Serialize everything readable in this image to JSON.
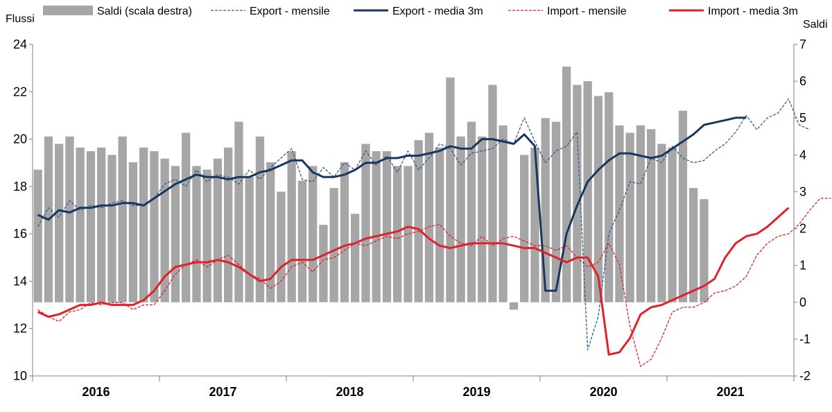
{
  "chart_data": {
    "type": "bar+line",
    "left_axis_title": "Flussi",
    "right_axis_title": "Saldi",
    "left_ylim": [
      10,
      24
    ],
    "left_ticks": [
      10,
      12,
      14,
      16,
      18,
      20,
      22,
      24
    ],
    "right_ylim": [
      -2,
      7
    ],
    "right_ticks": [
      -2,
      -1,
      0,
      1,
      2,
      3,
      4,
      5,
      6,
      7
    ],
    "year_labels": [
      "2016",
      "2017",
      "2018",
      "2019",
      "2020",
      "2021"
    ],
    "start": "2016-01",
    "grid": false,
    "legend_position": "top",
    "legend": [
      {
        "key": "saldi",
        "label": "Saldi (scala destra)"
      },
      {
        "key": "export_m",
        "label": "Export - mensile"
      },
      {
        "key": "export_3m",
        "label": "Export - media 3m"
      },
      {
        "key": "import_m",
        "label": "Import - mensile"
      },
      {
        "key": "import_3m",
        "label": "Import - media 3m"
      }
    ],
    "colors": {
      "saldi": "#a6a6a6",
      "export": "#17375e",
      "export_monthly": "#2e5f8a",
      "import": "#e0202a",
      "import_monthly": "#e0202a"
    },
    "series": [
      {
        "key": "saldi",
        "name": "Saldi (scala destra)",
        "axis": "right",
        "values": [
          3.6,
          4.5,
          4.3,
          4.5,
          4.2,
          4.1,
          4.2,
          4.0,
          4.5,
          3.8,
          4.2,
          4.1,
          3.9,
          3.7,
          4.6,
          3.7,
          3.6,
          3.9,
          4.2,
          4.9,
          3.4,
          4.5,
          3.8,
          3.0,
          4.1,
          3.3,
          3.7,
          2.1,
          3.1,
          3.8,
          2.4,
          4.3,
          4.1,
          4.1,
          3.7,
          3.7,
          4.4,
          4.6,
          4.2,
          6.1,
          4.5,
          4.9,
          4.5,
          5.9,
          4.8,
          -0.2,
          4.0,
          4.2,
          5.0,
          4.9,
          6.4,
          5.9,
          6.0,
          5.6,
          5.7,
          4.8,
          4.6,
          4.8,
          4.7,
          4.3,
          4.2,
          5.2,
          3.1,
          2.8
        ]
      },
      {
        "key": "export_m",
        "name": "Export - mensile",
        "axis": "left",
        "values": [
          16.3,
          17.1,
          16.7,
          17.4,
          17.0,
          17.2,
          17.1,
          17.3,
          17.4,
          17.2,
          17.2,
          17.5,
          18.1,
          18.3,
          18.0,
          18.7,
          18.2,
          18.5,
          18.4,
          18.1,
          18.7,
          18.3,
          18.8,
          19.2,
          19.6,
          18.3,
          18.2,
          18.8,
          18.4,
          19.0,
          18.7,
          19.5,
          18.9,
          19.3,
          18.6,
          19.5,
          18.7,
          19.2,
          19.8,
          19.6,
          18.9,
          19.4,
          19.5,
          19.6,
          20.0,
          19.8,
          20.9,
          19.9,
          19.0,
          19.5,
          19.7,
          20.3,
          11.1,
          12.5,
          16.0,
          17.0,
          18.2,
          18.1,
          19.2,
          19.0,
          19.7,
          19.2,
          19.0,
          19.1,
          19.5,
          19.8,
          20.3,
          21.0,
          20.4,
          20.9,
          21.1,
          21.7,
          20.6,
          20.4
        ]
      },
      {
        "key": "export_3m",
        "name": "Export - media 3m",
        "axis": "left",
        "values": [
          16.8,
          16.6,
          17.0,
          16.9,
          17.1,
          17.1,
          17.2,
          17.2,
          17.3,
          17.3,
          17.2,
          17.5,
          17.8,
          18.1,
          18.3,
          18.5,
          18.4,
          18.4,
          18.3,
          18.4,
          18.4,
          18.6,
          18.7,
          18.9,
          19.1,
          19.1,
          18.6,
          18.4,
          18.4,
          18.5,
          18.7,
          19.0,
          19.0,
          19.2,
          19.2,
          19.3,
          19.3,
          19.4,
          19.5,
          19.7,
          19.6,
          19.6,
          20.0,
          20.0,
          19.9,
          19.8,
          20.2,
          19.7,
          13.6,
          13.6,
          16.0,
          17.2,
          18.2,
          18.7,
          19.1,
          19.4,
          19.4,
          19.3,
          19.2,
          19.3,
          19.6,
          19.9,
          20.2,
          20.6,
          20.7,
          20.8,
          20.9,
          20.9
        ]
      },
      {
        "key": "import_m",
        "name": "Import - mensile",
        "axis": "left",
        "values": [
          12.8,
          12.5,
          12.3,
          12.7,
          12.8,
          13.1,
          13.0,
          13.1,
          13.1,
          12.8,
          13.0,
          13.0,
          13.6,
          14.3,
          14.7,
          14.9,
          14.6,
          14.9,
          15.1,
          14.7,
          14.3,
          14.1,
          13.7,
          14.0,
          14.6,
          14.8,
          14.4,
          14.9,
          15.0,
          15.3,
          15.6,
          15.5,
          15.7,
          15.9,
          15.8,
          16.0,
          16.1,
          16.3,
          16.4,
          15.9,
          15.6,
          15.5,
          15.9,
          15.5,
          15.8,
          15.9,
          15.7,
          15.5,
          15.5,
          15.3,
          15.5,
          15.0,
          14.6,
          14.8,
          15.6,
          14.7,
          12.1,
          10.4,
          10.7,
          11.6,
          12.7,
          12.9,
          12.9,
          13.1,
          13.5,
          13.6,
          13.8,
          14.2,
          15.1,
          15.6,
          15.9,
          16.0,
          16.4,
          17.0,
          17.5,
          17.5
        ]
      },
      {
        "key": "import_3m",
        "name": "Import - media 3m",
        "axis": "left",
        "values": [
          12.7,
          12.5,
          12.6,
          12.8,
          13.0,
          13.0,
          13.1,
          13.0,
          13.0,
          13.0,
          13.2,
          13.6,
          14.2,
          14.6,
          14.7,
          14.8,
          14.8,
          14.9,
          14.8,
          14.6,
          14.3,
          14.0,
          14.1,
          14.6,
          14.9,
          14.9,
          14.9,
          15.1,
          15.3,
          15.5,
          15.6,
          15.8,
          15.9,
          16.0,
          16.1,
          16.3,
          16.2,
          15.8,
          15.5,
          15.4,
          15.5,
          15.6,
          15.6,
          15.6,
          15.6,
          15.5,
          15.4,
          15.4,
          15.2,
          15.0,
          14.8,
          15.0,
          15.0,
          14.2,
          10.9,
          11.0,
          11.6,
          12.6,
          12.9,
          13.0,
          13.2,
          13.4,
          13.6,
          13.8,
          14.1,
          15.0,
          15.6,
          15.9,
          16.0,
          16.3,
          16.7,
          17.1
        ]
      }
    ]
  }
}
